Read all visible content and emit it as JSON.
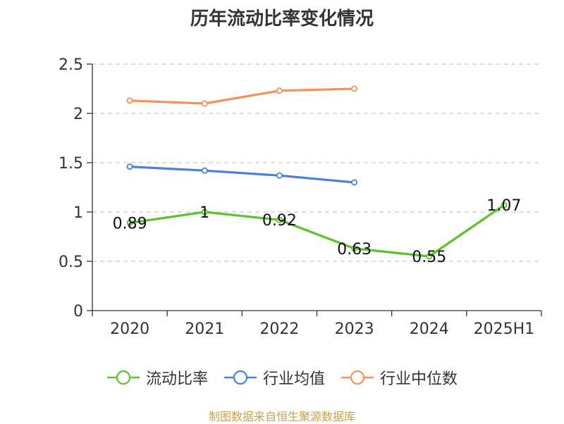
{
  "chart_data": {
    "type": "line",
    "title": "历年流动比率变化情况",
    "categories": [
      "2020",
      "2021",
      "2022",
      "2023",
      "2024",
      "2025H1"
    ],
    "ylim": [
      0,
      2.5
    ],
    "yticks": [
      "0",
      "0.5",
      "1",
      "1.5",
      "2",
      "2.5"
    ],
    "grid": true,
    "legend_position": "bottom",
    "series": [
      {
        "name": "流动比率",
        "color": "#5cc22a",
        "labeled": true,
        "values": [
          0.89,
          1,
          0.92,
          0.63,
          0.55,
          1.07
        ],
        "labels": [
          "0.89",
          "1",
          "0.92",
          "0.63",
          "0.55",
          "1.07"
        ]
      },
      {
        "name": "行业均值",
        "color": "#4a7fdc",
        "labeled": false,
        "values": [
          1.46,
          1.42,
          1.37,
          1.3,
          null,
          null
        ]
      },
      {
        "name": "行业中位数",
        "color": "#f79159",
        "labeled": false,
        "values": [
          2.13,
          2.1,
          2.23,
          2.25,
          null,
          null
        ]
      }
    ]
  },
  "source": "制图数据来自恒生聚源数据库"
}
